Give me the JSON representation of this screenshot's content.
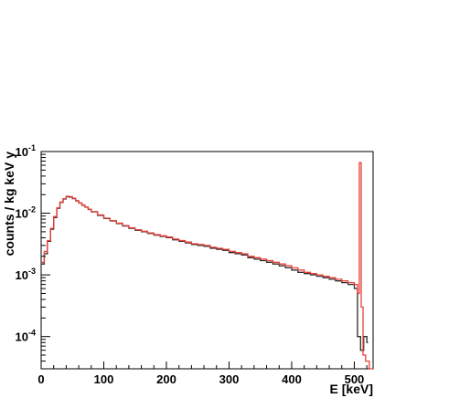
{
  "chart_data": {
    "type": "line",
    "title": "",
    "xlabel": "E [keV]",
    "ylabel": "counts / kg keV y",
    "xlim": [
      0,
      530
    ],
    "ylim": [
      3e-05,
      0.1
    ],
    "yscale": "log",
    "x_ticks": [
      0,
      100,
      200,
      300,
      400,
      500
    ],
    "y_ticks": [
      {
        "value": 0.1,
        "base": "10",
        "exp": "-1"
      },
      {
        "value": 0.01,
        "base": "10",
        "exp": "-2"
      },
      {
        "value": 0.001,
        "base": "10",
        "exp": "-3"
      },
      {
        "value": 0.0001,
        "base": "10",
        "exp": "-4"
      }
    ],
    "grid": false,
    "legend": "none",
    "series": [
      {
        "color": "#2b2b2b",
        "x": [
          0,
          5,
          10,
          15,
          20,
          25,
          30,
          35,
          40,
          45,
          50,
          55,
          60,
          65,
          70,
          75,
          80,
          90,
          100,
          110,
          120,
          130,
          140,
          150,
          160,
          170,
          180,
          190,
          200,
          210,
          220,
          230,
          240,
          250,
          260,
          270,
          280,
          290,
          300,
          310,
          320,
          330,
          340,
          350,
          360,
          370,
          380,
          390,
          400,
          410,
          420,
          430,
          440,
          450,
          460,
          470,
          480,
          490,
          500,
          505,
          510,
          515,
          520
        ],
        "y": [
          0.0015,
          0.0022,
          0.0035,
          0.0055,
          0.0085,
          0.012,
          0.015,
          0.017,
          0.0185,
          0.0182,
          0.0172,
          0.0158,
          0.0146,
          0.0135,
          0.0125,
          0.0115,
          0.0105,
          0.0092,
          0.0082,
          0.0075,
          0.0068,
          0.0062,
          0.0057,
          0.0053,
          0.005,
          0.0047,
          0.0044,
          0.0042,
          0.004,
          0.0037,
          0.0035,
          0.0033,
          0.0031,
          0.003,
          0.0029,
          0.0027,
          0.0026,
          0.0025,
          0.0023,
          0.0022,
          0.0021,
          0.0019,
          0.0018,
          0.0017,
          0.0016,
          0.0015,
          0.0014,
          0.0013,
          0.0012,
          0.0011,
          0.00105,
          0.001,
          0.00095,
          0.0009,
          0.00085,
          0.0008,
          0.00075,
          0.0007,
          0.0006,
          0.0001,
          6e-05,
          0.0001,
          8e-05
        ]
      },
      {
        "color": "#e8413a",
        "x": [
          0,
          5,
          10,
          15,
          20,
          25,
          30,
          35,
          40,
          45,
          50,
          55,
          60,
          65,
          70,
          75,
          80,
          90,
          100,
          110,
          120,
          130,
          140,
          150,
          160,
          170,
          180,
          190,
          200,
          210,
          220,
          230,
          240,
          250,
          260,
          270,
          280,
          290,
          300,
          310,
          320,
          330,
          340,
          350,
          360,
          370,
          380,
          390,
          400,
          410,
          420,
          430,
          440,
          450,
          460,
          470,
          480,
          490,
          500,
          505,
          508,
          511,
          514,
          518,
          524,
          530
        ],
        "y": [
          0.0016,
          0.0024,
          0.0036,
          0.0057,
          0.0088,
          0.0122,
          0.0152,
          0.0172,
          0.0188,
          0.0185,
          0.0175,
          0.016,
          0.0147,
          0.0136,
          0.0126,
          0.0116,
          0.0106,
          0.0094,
          0.0083,
          0.0076,
          0.0069,
          0.0063,
          0.0058,
          0.0054,
          0.0051,
          0.0048,
          0.0045,
          0.0043,
          0.0041,
          0.0038,
          0.0036,
          0.0034,
          0.0032,
          0.0031,
          0.003,
          0.0028,
          0.0027,
          0.0026,
          0.0024,
          0.0023,
          0.0022,
          0.002,
          0.0019,
          0.0018,
          0.0017,
          0.0016,
          0.0015,
          0.0014,
          0.0013,
          0.0012,
          0.0011,
          0.00105,
          0.001,
          0.00095,
          0.0009,
          0.00085,
          0.0008,
          0.00075,
          0.0007,
          0.0005,
          0.066,
          0.0003,
          5e-05,
          4e-05,
          3e-05,
          3e-05
        ]
      }
    ]
  }
}
